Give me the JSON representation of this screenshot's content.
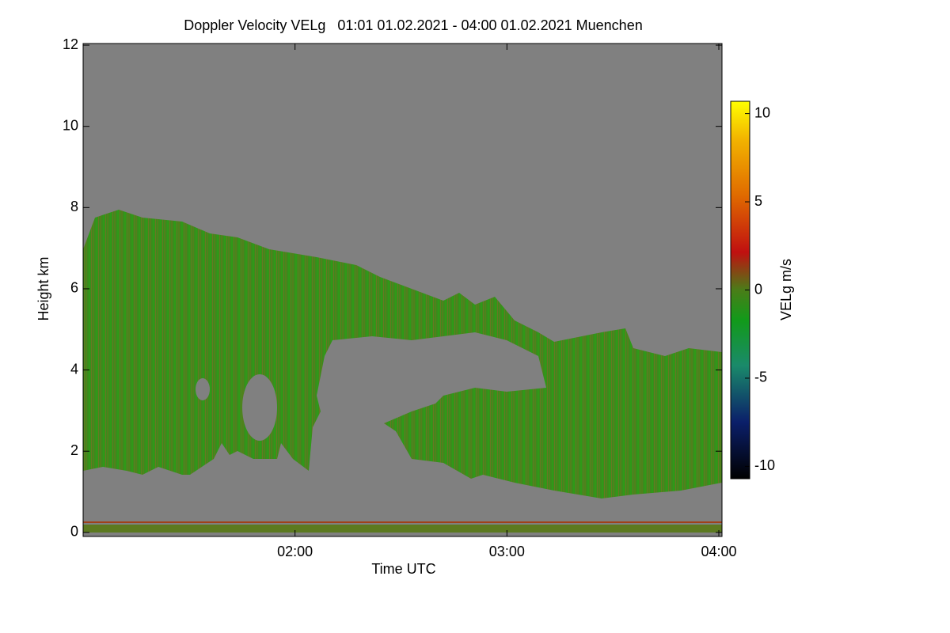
{
  "chart_data": {
    "type": "heatmap",
    "title": "Doppler Velocity VELg   01:01 01.02.2021 - 04:00 01.02.2021 Muenchen",
    "xlabel": "Time UTC",
    "ylabel": "Height km",
    "xlim": [
      1.0,
      4.015
    ],
    "xticks": [
      {
        "value": 2,
        "label": "02:00"
      },
      {
        "value": 3,
        "label": "03:00"
      },
      {
        "value": 4,
        "label": "04:00"
      }
    ],
    "ylim": [
      -0.1,
      12.04
    ],
    "yticks": [
      0,
      2,
      4,
      6,
      8,
      10,
      12
    ],
    "colorbar": {
      "label": "VELg m/s",
      "clim": [
        -10.7,
        10.7
      ],
      "ticks": [
        -10,
        -5,
        0,
        5,
        10
      ]
    }
  }
}
